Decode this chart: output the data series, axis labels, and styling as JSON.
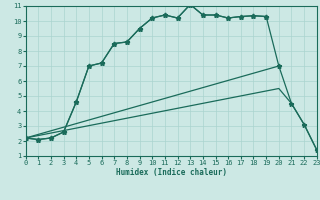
{
  "xlabel": "Humidex (Indice chaleur)",
  "bg_color": "#cce8e4",
  "grid_color": "#aad4cf",
  "line_color": "#1a6b5a",
  "xlim": [
    0,
    23
  ],
  "ylim": [
    1,
    11
  ],
  "xticks": [
    0,
    1,
    2,
    3,
    4,
    5,
    6,
    7,
    8,
    9,
    10,
    11,
    12,
    13,
    14,
    15,
    16,
    17,
    18,
    19,
    20,
    21,
    22,
    23
  ],
  "yticks": [
    1,
    2,
    3,
    4,
    5,
    6,
    7,
    8,
    9,
    10,
    11
  ],
  "curve1_x": [
    0,
    1,
    2,
    3,
    4,
    5,
    6,
    7,
    8,
    9,
    10,
    11,
    12,
    13,
    14,
    15,
    16,
    17,
    18,
    19,
    20,
    21,
    22,
    23
  ],
  "curve1_y": [
    2.2,
    2.1,
    2.2,
    2.6,
    4.6,
    7.0,
    7.2,
    8.5,
    8.6,
    9.5,
    10.2,
    10.4,
    10.2,
    11.1,
    10.4,
    10.4,
    10.2,
    10.3,
    10.35,
    10.3,
    null,
    null,
    null,
    null
  ],
  "curve2_x": [
    0,
    1,
    2,
    3,
    4,
    5,
    6,
    7,
    8,
    9,
    10,
    11,
    12,
    13,
    14,
    15,
    16,
    17,
    18,
    19,
    20,
    21,
    22,
    23
  ],
  "curve2_y": [
    2.2,
    2.1,
    2.2,
    2.6,
    4.6,
    7.0,
    7.2,
    8.5,
    8.6,
    9.5,
    10.2,
    10.4,
    10.2,
    11.1,
    10.4,
    10.4,
    10.2,
    10.3,
    10.35,
    10.3,
    7.0,
    4.5,
    3.1,
    1.4
  ],
  "curve3_x": [
    0,
    20
  ],
  "curve3_y": [
    2.2,
    7.0
  ],
  "curve4_x": [
    0,
    20,
    21,
    22,
    23
  ],
  "curve4_y": [
    2.2,
    5.5,
    4.5,
    3.1,
    1.4
  ]
}
